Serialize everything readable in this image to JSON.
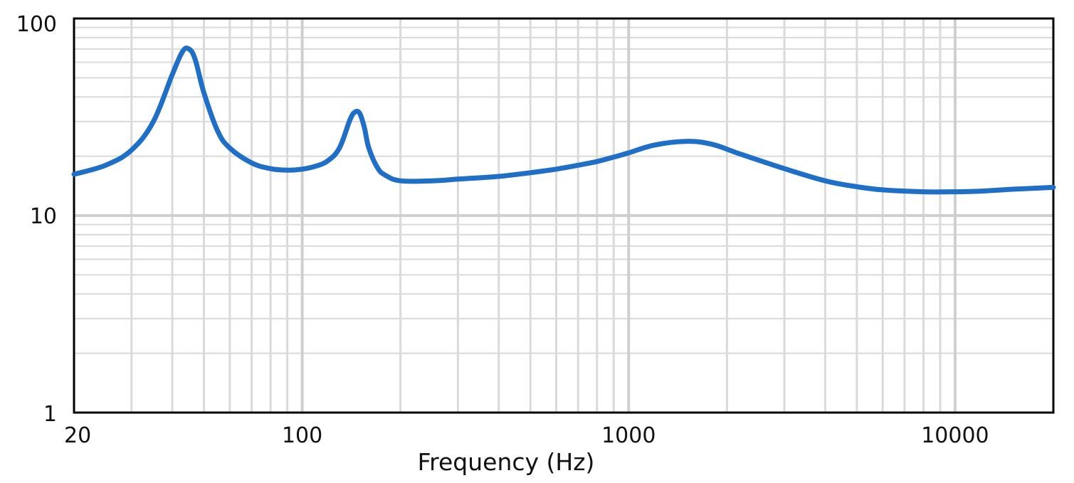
{
  "chart_data": {
    "type": "line",
    "title": "",
    "xlabel": "Frequency (Hz)",
    "ylabel": "",
    "x_scale": "log",
    "y_scale": "log",
    "xlim": [
      20,
      20000
    ],
    "ylim": [
      1,
      100
    ],
    "grid": true,
    "x_tick_labels": [
      {
        "value": 20,
        "label": "20"
      },
      {
        "value": 100,
        "label": "100"
      },
      {
        "value": 1000,
        "label": "1000"
      },
      {
        "value": 10000,
        "label": "10000"
      }
    ],
    "y_tick_labels": [
      {
        "value": 1,
        "label": "1"
      },
      {
        "value": 10,
        "label": "10"
      },
      {
        "value": 100,
        "label": "100"
      }
    ],
    "series": [
      {
        "color": "#1f6fc6",
        "x": [
          20,
          25,
          30,
          35,
          40,
          43,
          45,
          47,
          50,
          55,
          60,
          70,
          80,
          90,
          100,
          110,
          120,
          130,
          140,
          145,
          150,
          155,
          160,
          170,
          180,
          200,
          250,
          300,
          400,
          500,
          600,
          700,
          800,
          900,
          1000,
          1200,
          1500,
          1800,
          2200,
          3000,
          4000,
          5000,
          6000,
          8000,
          10000,
          12000,
          15000,
          20000
        ],
        "y": [
          16.2,
          18.0,
          21.5,
          30.0,
          52.0,
          68.0,
          70.0,
          62.0,
          42.0,
          27.0,
          22.0,
          18.5,
          17.3,
          17.0,
          17.2,
          17.8,
          19.0,
          22.0,
          30.5,
          33.5,
          33.0,
          28.0,
          22.0,
          17.5,
          16.0,
          15.0,
          15.0,
          15.3,
          15.8,
          16.5,
          17.2,
          18.0,
          18.8,
          19.8,
          20.8,
          22.8,
          23.8,
          23.0,
          20.5,
          17.3,
          15.0,
          14.0,
          13.5,
          13.2,
          13.2,
          13.3,
          13.6,
          13.9
        ]
      }
    ]
  }
}
